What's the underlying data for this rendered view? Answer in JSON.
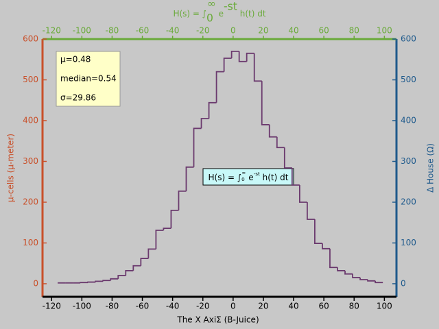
{
  "chart_data": {
    "type": "histogram",
    "title": [
      "H(s) = ∫",
      "0",
      "∞",
      " e",
      "-st",
      " h(t) dt"
    ],
    "xlabel": "The X AxiΣ (B-Juice)",
    "ylabel": "μ-cells (μ-meter)",
    "y2label": "Δ House (Ω)",
    "bins": [
      -116,
      -111,
      -106,
      -101,
      -96,
      -91,
      -86,
      -81,
      -76,
      -71,
      -66,
      -61,
      -56,
      -51,
      -46,
      -41,
      -36,
      -31,
      -26,
      -21,
      -16,
      -11,
      -6,
      -1,
      4,
      9,
      14,
      19,
      24,
      29,
      34,
      39,
      44,
      49,
      54,
      59,
      64,
      69,
      74,
      79,
      84,
      89,
      94,
      99
    ],
    "values": [
      2,
      2,
      2,
      3,
      4,
      6,
      8,
      12,
      20,
      32,
      44,
      62,
      85,
      131,
      136,
      180,
      227,
      286,
      381,
      405,
      444,
      520,
      553,
      570,
      545,
      565,
      497,
      390,
      360,
      334,
      284,
      242,
      200,
      158,
      99,
      86,
      40,
      32,
      24,
      15,
      10,
      7,
      3
    ],
    "color": "#6b3a6e",
    "xlim": [
      -126,
      108
    ],
    "xticks": [
      -120,
      -100,
      -80,
      -60,
      -40,
      -20,
      0,
      20,
      40,
      60,
      80,
      100
    ],
    "ylim": [
      -32,
      600
    ],
    "yticks": [
      0,
      100,
      200,
      300,
      400,
      500,
      600
    ],
    "y2lim": [
      -32,
      600
    ],
    "y2ticks": [
      0,
      100,
      200,
      300,
      400,
      500,
      600
    ],
    "stats": [
      "μ=0.48",
      "median=0.54",
      "σ=29.86"
    ],
    "annotation": [
      "H(s) = ∫",
      "0",
      "∞",
      " e",
      "-st",
      " h(t) dt"
    ],
    "colors": {
      "left": "#c9502a",
      "right": "#1f5a8c",
      "top": "#6aaa3a",
      "bottom": "#000000"
    }
  }
}
